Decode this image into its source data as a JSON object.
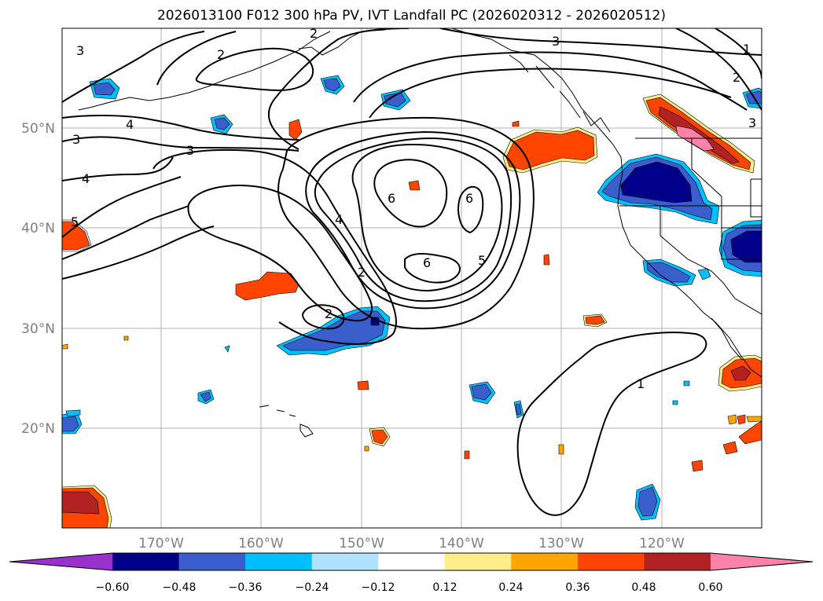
{
  "title": "2026013100 F012 300 hPa PV, IVT Landfall PC (2026020312 - 2026020512)",
  "map": {
    "lon_labels": [
      "170°W",
      "160°W",
      "150°W",
      "140°W",
      "130°W",
      "120°W"
    ],
    "lat_labels": [
      "50°N",
      "40°N",
      "30°N",
      "20°N"
    ],
    "grid": true,
    "contour_labels": [
      "3",
      "2",
      "4",
      "3",
      "3",
      "4",
      "5",
      "2",
      "4",
      "6",
      "6",
      "6",
      "5",
      "2",
      "2",
      "1",
      "3",
      "1",
      "2",
      "3"
    ]
  },
  "colorbar": {
    "ticks": [
      "−0.60",
      "−0.48",
      "−0.36",
      "−0.24",
      "−0.12",
      "0.12",
      "0.24",
      "0.36",
      "0.48",
      "0.60"
    ],
    "colors": [
      "#9932cc",
      "#00008b",
      "#3a5fcd",
      "#00bfff",
      "#b0e2ff",
      "#ffffff",
      "#ffec8b",
      "#ffa500",
      "#ff4500",
      "#b22222",
      "#ff82ab"
    ]
  }
}
